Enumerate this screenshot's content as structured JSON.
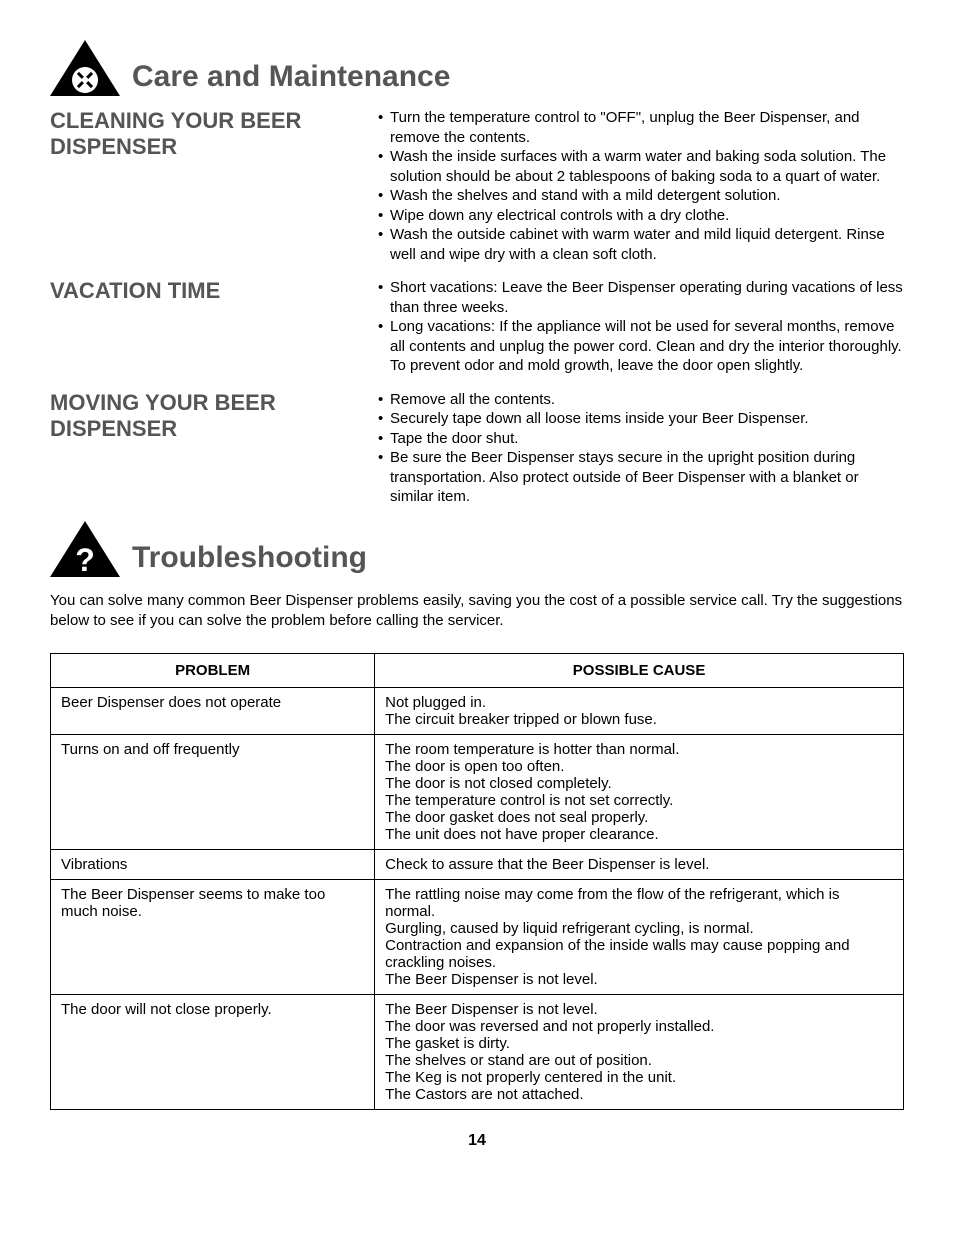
{
  "care": {
    "title": "Care and Maintenance",
    "cleaning": {
      "heading": "CLEANING YOUR BEER DISPENSER",
      "items": [
        "Turn the temperature control to \"OFF\", unplug the Beer Dispenser, and remove the contents.",
        "Wash the inside surfaces with a warm water and baking soda solution. The solution should be about 2 tablespoons of baking soda to a quart of water.",
        "Wash the shelves and stand with a mild detergent solution.",
        "Wipe down any electrical controls with a dry clothe.",
        "Wash the outside cabinet with warm water and mild liquid detergent. Rinse well and wipe dry with a clean soft cloth."
      ]
    },
    "vacation": {
      "heading": "VACATION TIME",
      "items": [
        "Short vacations: Leave the Beer Dispenser operating during vacations of less than three weeks.",
        "Long vacations: If the appliance will not be used for several months, remove all contents and unplug the power cord. Clean and dry the interior thoroughly. To prevent odor and mold growth, leave the door open slightly."
      ]
    },
    "moving": {
      "heading": "MOVING YOUR BEER DISPENSER",
      "items": [
        "Remove all the contents.",
        "Securely tape down all loose items inside your Beer Dispenser.",
        "Tape the door shut.",
        "Be sure the Beer Dispenser stays secure in the upright position during transportation. Also protect outside of Beer Dispenser with a blanket or similar item."
      ]
    }
  },
  "trouble": {
    "title": "Troubleshooting",
    "intro": "You can solve many common Beer Dispenser problems easily, saving you the cost of a possible service call. Try the suggestions below to see if you can solve the problem before calling the servicer.",
    "columns": [
      "PROBLEM",
      "POSSIBLE CAUSE"
    ],
    "rows": [
      {
        "problem": "Beer Dispenser does not operate",
        "causes": [
          "Not plugged in.",
          "The circuit breaker tripped or blown fuse."
        ]
      },
      {
        "problem": "Turns on and off frequently",
        "causes": [
          "The room temperature is hotter than normal.",
          "The door is open too often.",
          "The door is not closed completely.",
          "The temperature control is not set correctly.",
          "The door gasket does not seal properly.",
          "The unit does not have proper clearance."
        ]
      },
      {
        "problem": "Vibrations",
        "causes": [
          "Check to assure that the Beer Dispenser is level."
        ]
      },
      {
        "problem": "The Beer Dispenser seems to make too much noise.",
        "causes": [
          "The rattling noise may come from the flow of the refrigerant, which is normal.",
          "Gurgling, caused by liquid refrigerant cycling, is normal.",
          "Contraction and expansion of the inside walls may cause popping and crackling noises.",
          "The Beer Dispenser is not level."
        ]
      },
      {
        "problem": "The door will not close properly.",
        "causes": [
          "The Beer Dispenser is not level.",
          "The door was reversed and not properly installed.",
          "The gasket is dirty.",
          "The shelves or stand are out of position.",
          "The Keg is not properly centered in the unit.",
          "The Castors are not attached."
        ]
      }
    ]
  },
  "page_number": "14"
}
